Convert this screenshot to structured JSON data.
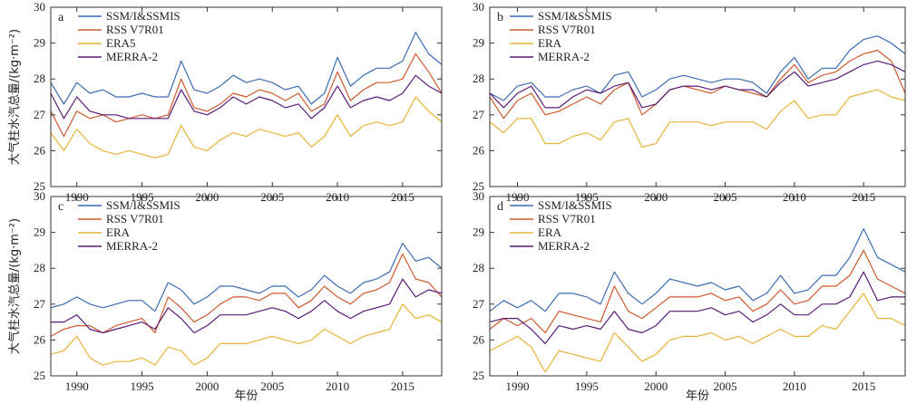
{
  "chart_data": {
    "type": "line",
    "xlabel": "年份",
    "ylabel": "大气柱水汽总量/(kg·m⁻²)",
    "colors": [
      "#3b6db3",
      "#cf5a2c",
      "#e6b43a",
      "#5a1a78"
    ],
    "x": [
      1988,
      1989,
      1990,
      1991,
      1992,
      1993,
      1994,
      1995,
      1996,
      1997,
      1998,
      1999,
      2000,
      2001,
      2002,
      2003,
      2004,
      2005,
      2006,
      2007,
      2008,
      2009,
      2010,
      2011,
      2012,
      2013,
      2014,
      2015,
      2016,
      2017,
      2018
    ],
    "xlim": [
      1988,
      2018
    ],
    "ylim": [
      25,
      30
    ],
    "xticks": [
      1990,
      1995,
      2000,
      2005,
      2010,
      2015
    ],
    "yticks": [
      25,
      26,
      27,
      28,
      29,
      30
    ],
    "panels": [
      {
        "label": "a",
        "series": [
          {
            "name": "SSM/I&SSMIS",
            "values": [
              27.9,
              27.3,
              27.9,
              27.6,
              27.7,
              27.5,
              27.5,
              27.6,
              27.5,
              27.5,
              28.5,
              27.7,
              27.6,
              27.8,
              28.1,
              27.9,
              28.0,
              27.9,
              27.7,
              27.8,
              27.3,
              27.6,
              28.6,
              27.8,
              28.1,
              28.3,
              28.3,
              28.5,
              29.3,
              28.7,
              28.4
            ]
          },
          {
            "name": "RSS V7R01",
            "values": [
              27.1,
              26.4,
              27.1,
              26.9,
              27.0,
              26.8,
              26.9,
              27.0,
              26.9,
              27.0,
              28.0,
              27.2,
              27.1,
              27.3,
              27.6,
              27.5,
              27.7,
              27.6,
              27.4,
              27.6,
              27.1,
              27.3,
              28.2,
              27.4,
              27.7,
              27.9,
              27.9,
              28.0,
              28.7,
              28.2,
              27.6
            ]
          },
          {
            "name": "ERA5",
            "values": [
              26.5,
              26.0,
              26.6,
              26.2,
              26.0,
              25.9,
              26.0,
              25.9,
              25.8,
              25.9,
              26.7,
              26.1,
              26.0,
              26.3,
              26.5,
              26.4,
              26.6,
              26.5,
              26.4,
              26.5,
              26.1,
              26.4,
              27.0,
              26.4,
              26.7,
              26.8,
              26.7,
              26.8,
              27.5,
              27.1,
              26.8
            ]
          },
          {
            "name": "MERRA-2",
            "values": [
              27.6,
              26.9,
              27.5,
              27.1,
              27.0,
              27.0,
              26.9,
              26.9,
              26.9,
              26.9,
              27.7,
              27.1,
              27.0,
              27.2,
              27.5,
              27.3,
              27.5,
              27.4,
              27.2,
              27.3,
              26.9,
              27.2,
              27.8,
              27.2,
              27.4,
              27.5,
              27.4,
              27.6,
              28.1,
              27.8,
              27.6
            ]
          }
        ]
      },
      {
        "label": "b",
        "series": [
          {
            "name": "SSM/I&SSMIS",
            "values": [
              27.6,
              27.4,
              27.8,
              27.9,
              27.5,
              27.5,
              27.7,
              27.8,
              27.6,
              28.1,
              28.2,
              27.5,
              27.7,
              28.0,
              28.1,
              28.0,
              27.9,
              28.0,
              28.0,
              27.9,
              27.6,
              28.2,
              28.6,
              28.0,
              28.3,
              28.3,
              28.8,
              29.1,
              29.2,
              29.0,
              28.7
            ]
          },
          {
            "name": "RSS V7R01",
            "values": [
              27.5,
              26.9,
              27.4,
              27.6,
              27.0,
              27.1,
              27.3,
              27.5,
              27.3,
              27.7,
              27.9,
              27.0,
              27.3,
              27.7,
              27.8,
              27.7,
              27.6,
              27.8,
              27.7,
              27.6,
              27.5,
              28.0,
              28.4,
              27.9,
              28.1,
              28.2,
              28.5,
              28.7,
              28.8,
              28.5,
              27.6
            ]
          },
          {
            "name": "ERA",
            "values": [
              26.8,
              26.5,
              26.9,
              26.9,
              26.2,
              26.2,
              26.4,
              26.5,
              26.3,
              26.8,
              26.9,
              26.1,
              26.2,
              26.8,
              26.8,
              26.8,
              26.7,
              26.8,
              26.8,
              26.8,
              26.6,
              27.1,
              27.4,
              26.9,
              27.0,
              27.0,
              27.5,
              27.6,
              27.7,
              27.5,
              27.4
            ]
          },
          {
            "name": "MERRA-2",
            "values": [
              27.6,
              27.2,
              27.6,
              27.8,
              27.2,
              27.2,
              27.5,
              27.7,
              27.6,
              27.8,
              27.9,
              27.2,
              27.3,
              27.7,
              27.8,
              27.8,
              27.7,
              27.8,
              27.7,
              27.7,
              27.5,
              27.9,
              28.2,
              27.8,
              27.9,
              28.0,
              28.2,
              28.4,
              28.5,
              28.4,
              28.2
            ]
          }
        ]
      },
      {
        "label": "c",
        "series": [
          {
            "name": "SSM/I&SSMIS",
            "values": [
              26.9,
              27.0,
              27.2,
              27.0,
              26.9,
              27.0,
              27.1,
              27.1,
              26.8,
              27.6,
              27.4,
              27.0,
              27.2,
              27.5,
              27.5,
              27.4,
              27.3,
              27.5,
              27.5,
              27.2,
              27.4,
              27.8,
              27.5,
              27.3,
              27.6,
              27.7,
              27.9,
              28.7,
              28.2,
              28.3,
              28.0
            ]
          },
          {
            "name": "RSS V7R01",
            "values": [
              26.1,
              26.3,
              26.4,
              26.4,
              26.2,
              26.4,
              26.5,
              26.6,
              26.2,
              27.2,
              26.9,
              26.5,
              26.7,
              27.0,
              27.2,
              27.2,
              27.1,
              27.3,
              27.3,
              26.9,
              27.1,
              27.5,
              27.2,
              27.0,
              27.3,
              27.4,
              27.6,
              28.4,
              27.7,
              27.6,
              27.2
            ]
          },
          {
            "name": "ERA",
            "values": [
              25.6,
              25.7,
              26.1,
              25.5,
              25.3,
              25.4,
              25.4,
              25.5,
              25.3,
              25.8,
              25.7,
              25.3,
              25.5,
              25.9,
              25.9,
              25.9,
              26.0,
              26.1,
              26.0,
              25.9,
              26.0,
              26.3,
              26.1,
              25.9,
              26.1,
              26.2,
              26.3,
              27.0,
              26.6,
              26.7,
              26.5
            ]
          },
          {
            "name": "MERRA-2",
            "values": [
              26.5,
              26.5,
              26.7,
              26.3,
              26.2,
              26.3,
              26.4,
              26.5,
              26.3,
              26.9,
              26.6,
              26.2,
              26.4,
              26.7,
              26.7,
              26.7,
              26.8,
              26.9,
              26.8,
              26.6,
              26.8,
              27.1,
              26.8,
              26.6,
              26.8,
              26.9,
              27.0,
              27.7,
              27.2,
              27.4,
              27.3
            ]
          }
        ]
      },
      {
        "label": "d",
        "series": [
          {
            "name": "SSM/I&SSMIS",
            "values": [
              26.8,
              27.1,
              26.9,
              27.1,
              26.8,
              27.3,
              27.3,
              27.2,
              27.0,
              27.9,
              27.3,
              27.0,
              27.3,
              27.7,
              27.6,
              27.5,
              27.6,
              27.4,
              27.5,
              27.1,
              27.3,
              27.8,
              27.3,
              27.4,
              27.8,
              27.8,
              28.3,
              29.1,
              28.3,
              28.1,
              27.9
            ]
          },
          {
            "name": "RSS V7R01",
            "values": [
              26.3,
              26.6,
              26.4,
              26.6,
              26.2,
              26.8,
              26.7,
              26.6,
              26.5,
              27.5,
              26.8,
              26.6,
              26.9,
              27.2,
              27.2,
              27.2,
              27.3,
              27.1,
              27.2,
              26.8,
              27.0,
              27.4,
              27.0,
              27.1,
              27.5,
              27.5,
              27.8,
              28.5,
              27.7,
              27.5,
              27.3
            ]
          },
          {
            "name": "ERA",
            "values": [
              25.7,
              25.9,
              26.1,
              25.8,
              25.1,
              25.7,
              25.6,
              25.5,
              25.4,
              26.2,
              25.8,
              25.4,
              25.6,
              26.0,
              26.1,
              26.1,
              26.2,
              26.0,
              26.1,
              25.9,
              26.1,
              26.3,
              26.1,
              26.1,
              26.4,
              26.3,
              26.8,
              27.3,
              26.6,
              26.6,
              26.4
            ]
          },
          {
            "name": "MERRA-2",
            "values": [
              26.5,
              26.6,
              26.6,
              26.3,
              25.9,
              26.4,
              26.3,
              26.4,
              26.3,
              26.8,
              26.3,
              26.2,
              26.4,
              26.8,
              26.8,
              26.8,
              26.9,
              26.7,
              26.8,
              26.5,
              26.7,
              27.0,
              26.7,
              26.7,
              27.0,
              27.0,
              27.2,
              27.9,
              27.1,
              27.2,
              27.2
            ]
          }
        ]
      }
    ]
  }
}
